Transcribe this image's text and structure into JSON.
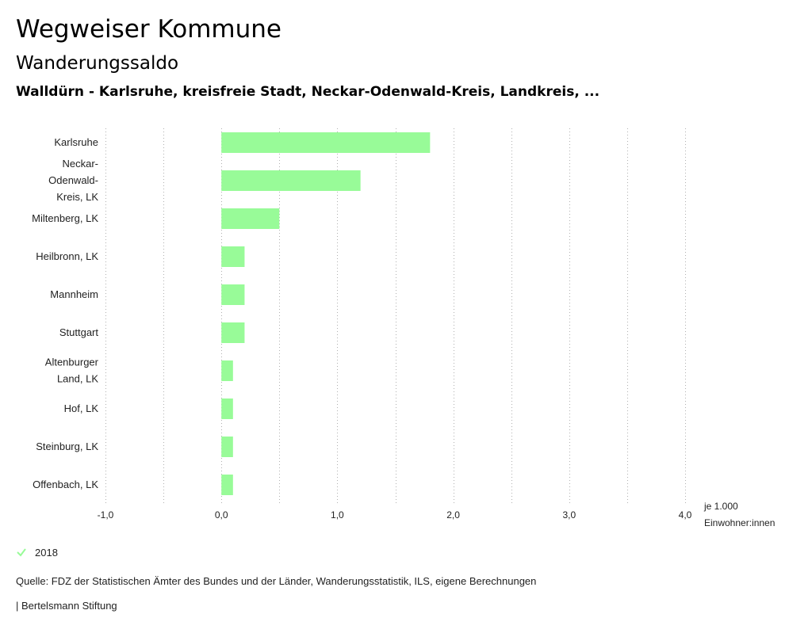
{
  "header": {
    "title": "Wegweiser Kommune",
    "subtitle": "Wanderungssaldo",
    "region": "Walldürn - Karlsruhe, kreisfreie Stadt, Neckar-Odenwald-Kreis, Landkreis, ..."
  },
  "chart_data": {
    "type": "bar",
    "orientation": "horizontal",
    "categories": [
      [
        "Karlsruhe"
      ],
      [
        "Neckar-",
        "Odenwald-",
        "Kreis, LK"
      ],
      [
        "Miltenberg, LK"
      ],
      [
        "Heilbronn, LK"
      ],
      [
        "Mannheim"
      ],
      [
        "Stuttgart"
      ],
      [
        "Altenburger",
        "Land, LK"
      ],
      [
        "Hof, LK"
      ],
      [
        "Steinburg, LK"
      ],
      [
        "Offenbach, LK"
      ]
    ],
    "series": [
      {
        "name": "2018",
        "values": [
          1.8,
          1.2,
          0.5,
          0.2,
          0.2,
          0.2,
          0.1,
          0.1,
          0.1,
          0.1
        ]
      }
    ],
    "xlim": [
      -1.0,
      4.0
    ],
    "x_ticks": [
      -1.0,
      0.0,
      1.0,
      2.0,
      3.0,
      4.0
    ],
    "x_tick_labels": [
      "-1,0",
      "0,0",
      "1,0",
      "2,0",
      "3,0",
      "4,0"
    ],
    "unit_label": [
      "je 1.000",
      "Einwohner:innen"
    ],
    "grid": "vertical dotted",
    "bar_color": "#98fb98"
  },
  "legend": {
    "label": "2018",
    "color": "#98fb98"
  },
  "footer": {
    "source": "Quelle: FDZ der Statistischen Ämter des Bundes und der Länder, Wanderungsstatistik, ILS, eigene Berechnungen",
    "brand": "| Bertelsmann Stiftung"
  }
}
